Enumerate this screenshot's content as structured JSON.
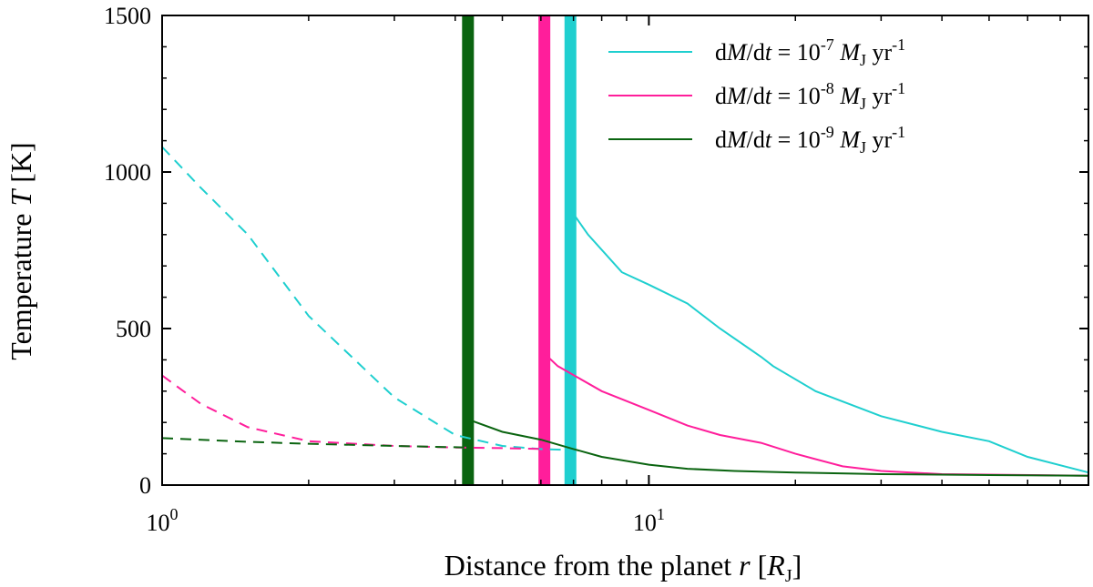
{
  "chart_data": {
    "type": "line",
    "x_scale": "log",
    "xlim": [
      1,
      80
    ],
    "ylim": [
      0,
      1500
    ],
    "x_ticks": [
      {
        "value": 1,
        "base": "10",
        "exp": "0"
      },
      {
        "value": 10,
        "base": "10",
        "exp": "1"
      }
    ],
    "y_ticks": [
      {
        "value": 0,
        "label": "0"
      },
      {
        "value": 500,
        "label": "500"
      },
      {
        "value": 1000,
        "label": "1000"
      },
      {
        "value": 1500,
        "label": "1500"
      }
    ],
    "xlabel": {
      "prefix": "Distance from the planet ",
      "var": "r",
      "open": " [",
      "unit": "R",
      "sub": "J",
      "close": "]"
    },
    "ylabel": {
      "prefix": "Temperature ",
      "var": "T",
      "suffix": " [K]"
    },
    "legend": {
      "position": "top-right"
    },
    "series": [
      {
        "name": "dM/dt = 10^-7 MJ yr^-1",
        "label_parts": {
          "d1": "d",
          "M": "M",
          "slash": "/d",
          "t": "t",
          "eq": " = 10",
          "exp": "-7",
          "sp": " ",
          "MJ": "M",
          "J": "J",
          "yr": " yr",
          "yrexp": "-1"
        },
        "color": "#1fcfcf",
        "boundary_r": 6.9,
        "dashed": {
          "x": [
            1.0,
            1.2,
            1.5,
            2.0,
            3.0,
            4.0,
            5.0,
            6.0,
            6.9
          ],
          "y": [
            1080,
            950,
            800,
            540,
            280,
            160,
            125,
            115,
            112
          ]
        },
        "solid": {
          "x": [
            6.9,
            7.5,
            8.8,
            10.0,
            12.0,
            14.0,
            17.0,
            18.0,
            22.0,
            30.0,
            40.0,
            50.0,
            60.0,
            80.0
          ],
          "y": [
            880,
            800,
            680,
            640,
            580,
            500,
            410,
            380,
            300,
            220,
            170,
            140,
            90,
            40
          ]
        }
      },
      {
        "name": "dM/dt = 10^-8 MJ yr^-1",
        "label_parts": {
          "d1": "d",
          "M": "M",
          "slash": "/d",
          "t": "t",
          "eq": " = 10",
          "exp": "-8",
          "sp": " ",
          "MJ": "M",
          "J": "J",
          "yr": " yr",
          "yrexp": "-1"
        },
        "color": "#ff1e9b",
        "boundary_r": 6.1,
        "dashed": {
          "x": [
            1.0,
            1.2,
            1.5,
            2.0,
            3.0,
            4.0,
            5.0,
            6.1
          ],
          "y": [
            350,
            260,
            185,
            140,
            125,
            120,
            118,
            115
          ]
        },
        "solid": {
          "x": [
            6.1,
            6.5,
            8.0,
            10.0,
            12.0,
            14.0,
            17.0,
            20.0,
            25.0,
            30.0,
            40.0,
            80.0
          ],
          "y": [
            420,
            380,
            300,
            240,
            190,
            160,
            135,
            100,
            60,
            45,
            35,
            30
          ]
        }
      },
      {
        "name": "dM/dt = 10^-9 MJ yr^-1",
        "label_parts": {
          "d1": "d",
          "M": "M",
          "slash": "/d",
          "t": "t",
          "eq": " = 10",
          "exp": "-9",
          "sp": " ",
          "MJ": "M",
          "J": "J",
          "yr": " yr",
          "yrexp": "-1"
        },
        "color": "#0a6410",
        "boundary_r": 4.25,
        "dashed": {
          "x": [
            1.0,
            1.5,
            2.0,
            3.0,
            4.0,
            4.25
          ],
          "y": [
            150,
            138,
            132,
            125,
            121,
            120
          ]
        },
        "solid": {
          "x": [
            4.25,
            5.0,
            6.0,
            7.0,
            8.0,
            10.0,
            12.0,
            15.0,
            20.0,
            30.0,
            50.0,
            80.0
          ],
          "y": [
            210,
            170,
            145,
            115,
            90,
            65,
            52,
            45,
            40,
            35,
            32,
            30
          ]
        }
      }
    ]
  }
}
